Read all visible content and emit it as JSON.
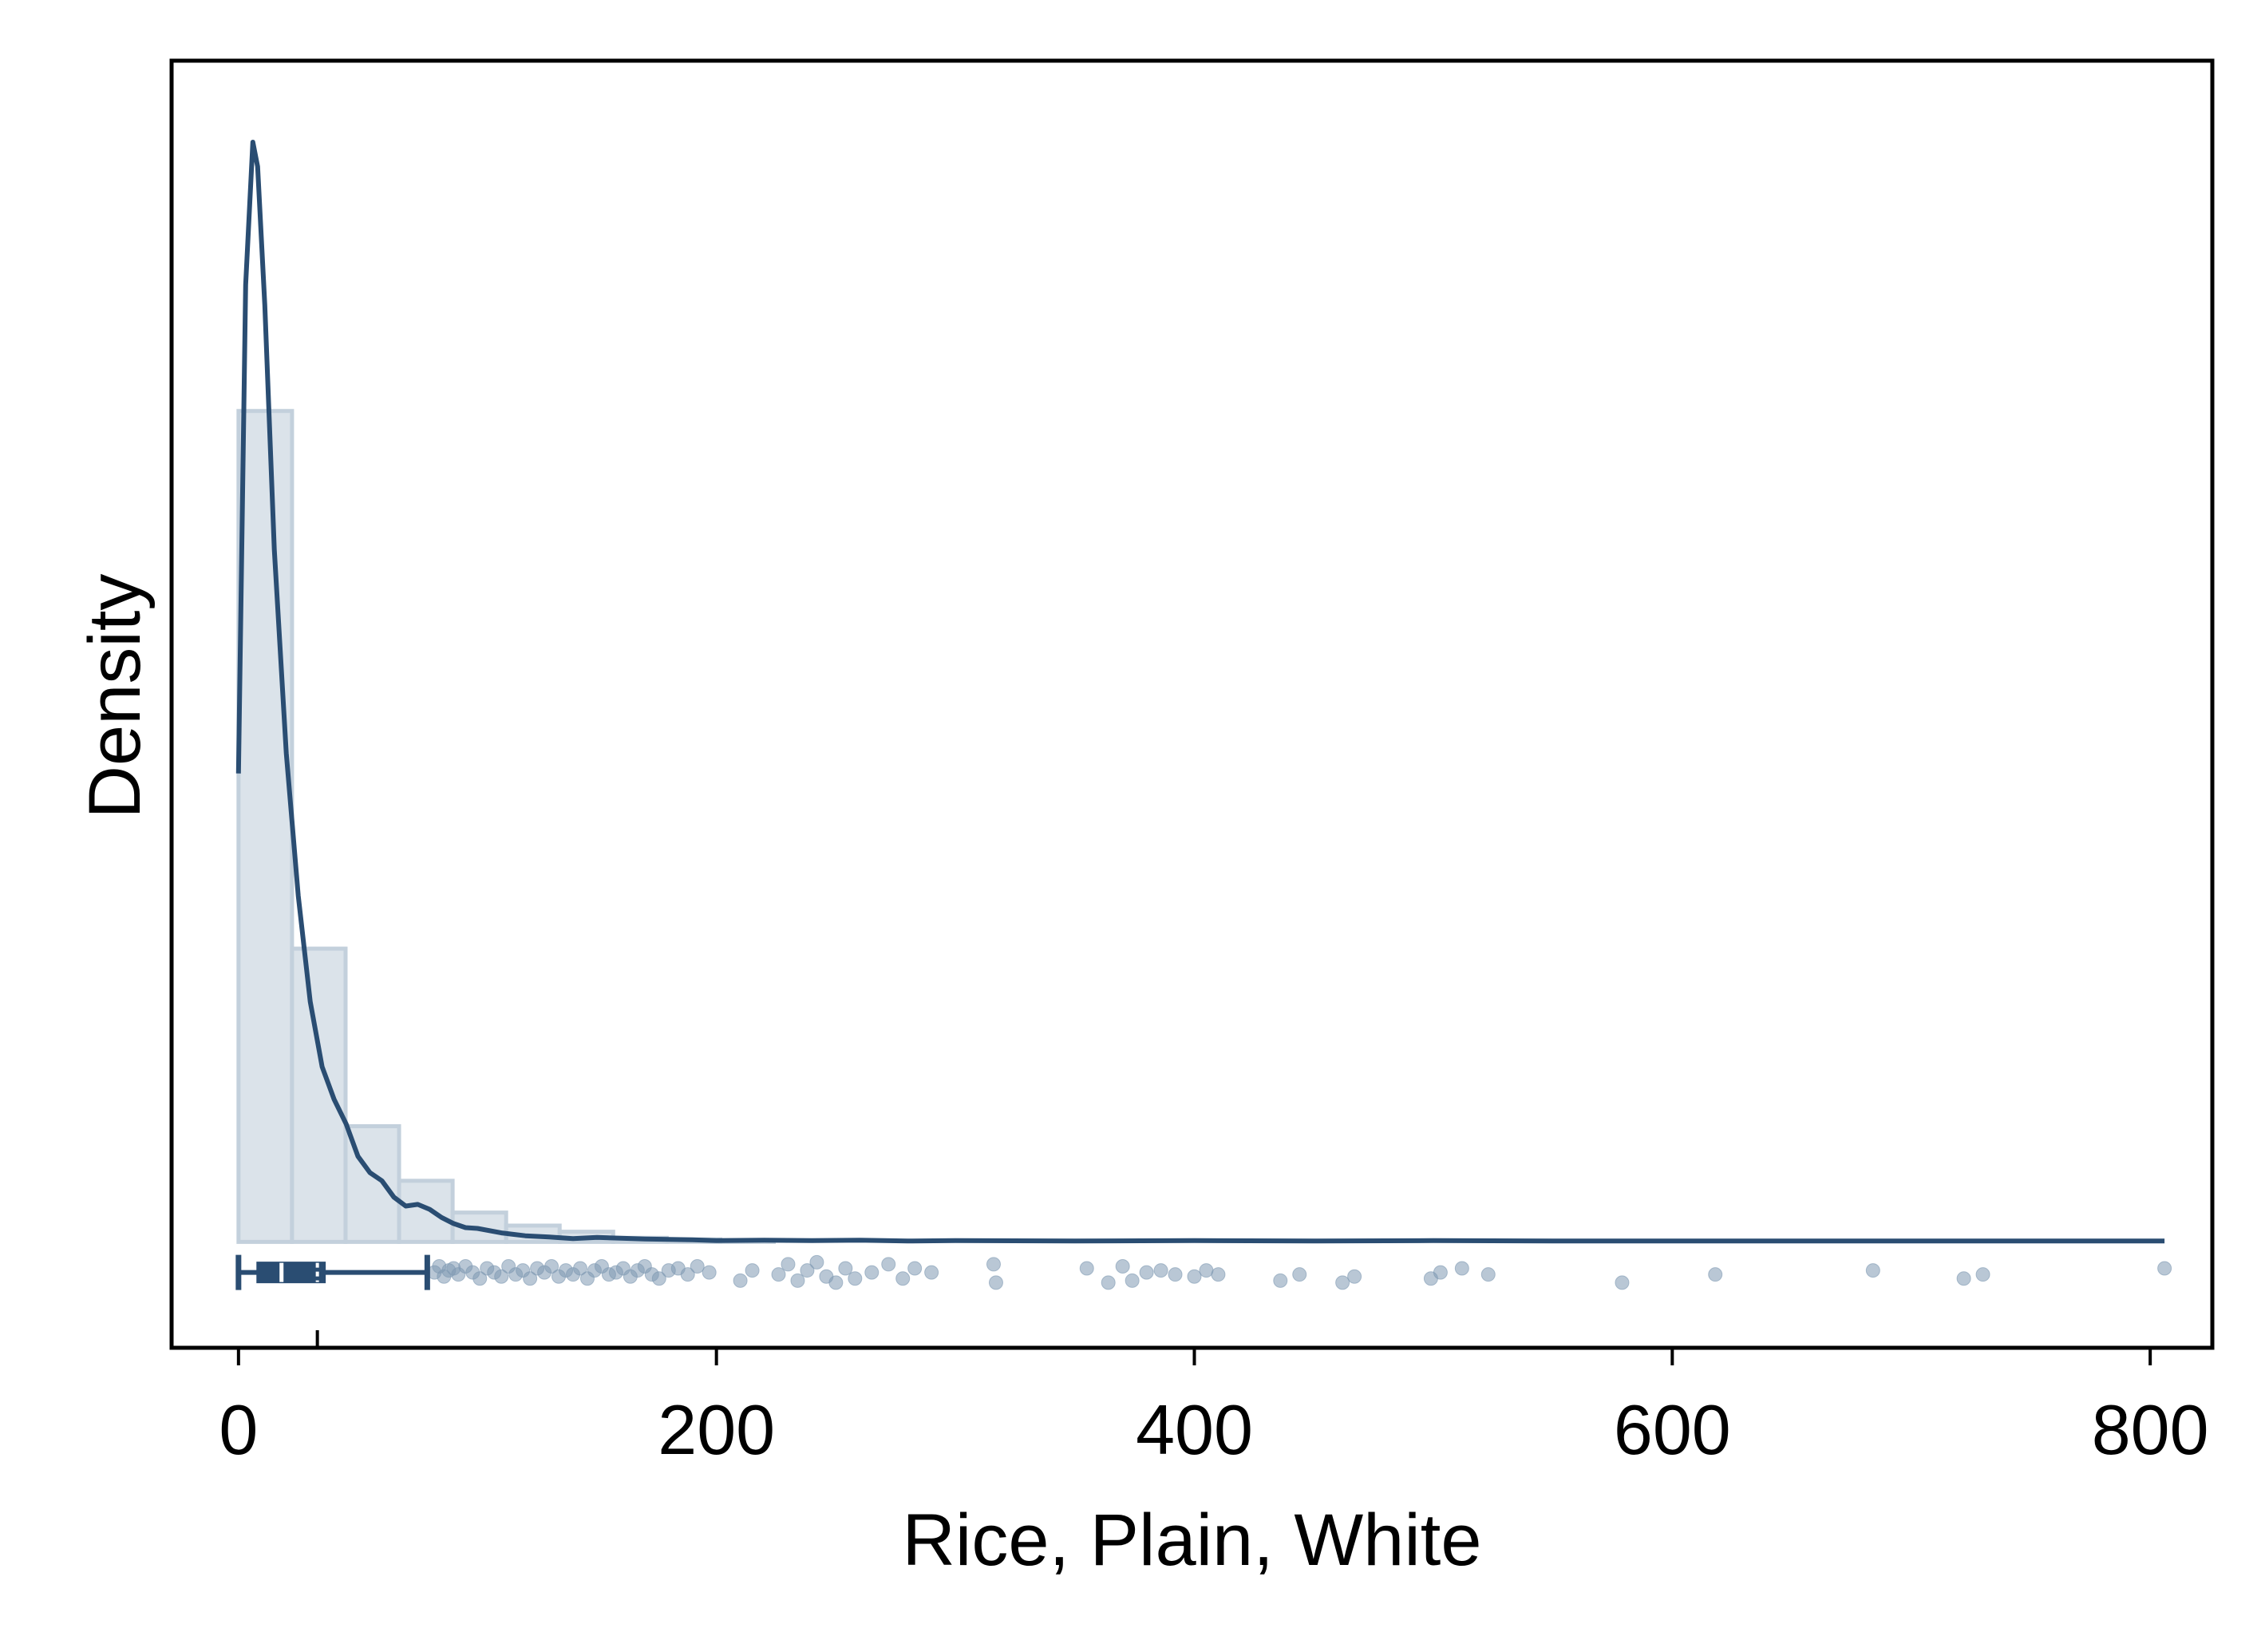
{
  "chart_data": {
    "type": "histogram",
    "xlabel": "Rice, Plain, White",
    "ylabel": "Density",
    "xlim": [
      -28,
      826
    ],
    "ylim": [
      -0.0026,
      0.029
    ],
    "x_ticks": [
      0,
      200,
      400,
      600,
      800
    ],
    "y_ticks_shown": false,
    "grid": false,
    "colors": {
      "bar_fill": "#dbe3ea",
      "bar_stroke": "#c3d0dc",
      "kde_line": "#2a4d72",
      "box": "#2a4d72",
      "points": "#7f99b2"
    },
    "histogram": {
      "bin_width": 22.4,
      "bin_start": 0,
      "densities": [
        0.0204,
        0.0072,
        0.00284,
        0.0015,
        0.00072,
        0.0004,
        0.00025,
        0.0001,
        6e-05,
        4e-05
      ]
    },
    "kde": {
      "x": [
        0,
        3,
        6,
        8,
        11,
        15,
        20,
        25,
        30,
        35,
        40,
        45,
        50,
        55,
        60,
        65,
        70,
        75,
        80,
        85,
        90,
        95,
        100,
        110,
        120,
        130,
        140,
        150,
        160,
        170,
        180,
        190,
        200,
        220,
        240,
        260,
        280,
        300,
        350,
        400,
        450,
        500,
        550,
        600,
        650,
        700,
        750,
        806
      ],
      "y": [
        0.0115,
        0.0235,
        0.027,
        0.0264,
        0.023,
        0.017,
        0.012,
        0.0085,
        0.0059,
        0.0043,
        0.0035,
        0.0029,
        0.0021,
        0.0017,
        0.0015,
        0.0011,
        0.00088,
        0.00092,
        0.0008,
        0.0006,
        0.00045,
        0.00035,
        0.00033,
        0.00022,
        0.00015,
        0.00012,
        8e-05,
        0.00011,
        9e-05,
        7e-05,
        6e-05,
        5e-05,
        3e-05,
        4e-05,
        3e-05,
        4e-05,
        2e-05,
        3e-05,
        2e-05,
        3e-05,
        2e-05,
        3e-05,
        2e-05,
        2e-05,
        2e-05,
        2e-05,
        2e-05,
        2e-05
      ]
    },
    "boxplot": {
      "whisker_low": 0,
      "q1": 8,
      "median": 18,
      "q3": 36,
      "whisker_high": 79,
      "mean": 33
    },
    "outliers": [
      {
        "x": 82,
        "y": -0.00075
      },
      {
        "x": 84,
        "y": -0.0006
      },
      {
        "x": 86,
        "y": -0.00085
      },
      {
        "x": 88,
        "y": -0.0007
      },
      {
        "x": 90,
        "y": -0.00065
      },
      {
        "x": 92,
        "y": -0.0008
      },
      {
        "x": 95,
        "y": -0.0006
      },
      {
        "x": 98,
        "y": -0.00075
      },
      {
        "x": 101,
        "y": -0.0009
      },
      {
        "x": 104,
        "y": -0.00065
      },
      {
        "x": 107,
        "y": -0.00075
      },
      {
        "x": 110,
        "y": -0.00085
      },
      {
        "x": 113,
        "y": -0.0006
      },
      {
        "x": 116,
        "y": -0.0008
      },
      {
        "x": 119,
        "y": -0.0007
      },
      {
        "x": 122,
        "y": -0.0009
      },
      {
        "x": 125,
        "y": -0.00065
      },
      {
        "x": 128,
        "y": -0.00075
      },
      {
        "x": 131,
        "y": -0.0006
      },
      {
        "x": 134,
        "y": -0.00085
      },
      {
        "x": 137,
        "y": -0.0007
      },
      {
        "x": 140,
        "y": -0.0008
      },
      {
        "x": 143,
        "y": -0.00065
      },
      {
        "x": 146,
        "y": -0.0009
      },
      {
        "x": 149,
        "y": -0.0007
      },
      {
        "x": 152,
        "y": -0.0006
      },
      {
        "x": 155,
        "y": -0.0008
      },
      {
        "x": 158,
        "y": -0.00075
      },
      {
        "x": 161,
        "y": -0.00065
      },
      {
        "x": 164,
        "y": -0.00085
      },
      {
        "x": 167,
        "y": -0.0007
      },
      {
        "x": 170,
        "y": -0.0006
      },
      {
        "x": 173,
        "y": -0.0008
      },
      {
        "x": 176,
        "y": -0.0009
      },
      {
        "x": 180,
        "y": -0.0007
      },
      {
        "x": 184,
        "y": -0.00065
      },
      {
        "x": 188,
        "y": -0.0008
      },
      {
        "x": 192,
        "y": -0.0006
      },
      {
        "x": 197,
        "y": -0.00075
      },
      {
        "x": 210,
        "y": -0.00095
      },
      {
        "x": 215,
        "y": -0.0007
      },
      {
        "x": 226,
        "y": -0.0008
      },
      {
        "x": 230,
        "y": -0.00055
      },
      {
        "x": 234,
        "y": -0.00095
      },
      {
        "x": 238,
        "y": -0.0007
      },
      {
        "x": 242,
        "y": -0.0005
      },
      {
        "x": 246,
        "y": -0.00085
      },
      {
        "x": 250,
        "y": -0.001
      },
      {
        "x": 254,
        "y": -0.00065
      },
      {
        "x": 258,
        "y": -0.0009
      },
      {
        "x": 265,
        "y": -0.00075
      },
      {
        "x": 272,
        "y": -0.00055
      },
      {
        "x": 278,
        "y": -0.0009
      },
      {
        "x": 283,
        "y": -0.00065
      },
      {
        "x": 290,
        "y": -0.00075
      },
      {
        "x": 316,
        "y": -0.00055
      },
      {
        "x": 317,
        "y": -0.001
      },
      {
        "x": 355,
        "y": -0.00065
      },
      {
        "x": 364,
        "y": -0.001
      },
      {
        "x": 370,
        "y": -0.0006
      },
      {
        "x": 374,
        "y": -0.00095
      },
      {
        "x": 380,
        "y": -0.00075
      },
      {
        "x": 386,
        "y": -0.0007
      },
      {
        "x": 392,
        "y": -0.0008
      },
      {
        "x": 400,
        "y": -0.00085
      },
      {
        "x": 405,
        "y": -0.0007
      },
      {
        "x": 410,
        "y": -0.0008
      },
      {
        "x": 436,
        "y": -0.00095
      },
      {
        "x": 444,
        "y": -0.0008
      },
      {
        "x": 462,
        "y": -0.001
      },
      {
        "x": 467,
        "y": -0.00085
      },
      {
        "x": 499,
        "y": -0.0009
      },
      {
        "x": 503,
        "y": -0.00075
      },
      {
        "x": 512,
        "y": -0.00065
      },
      {
        "x": 523,
        "y": -0.0008
      },
      {
        "x": 579,
        "y": -0.001
      },
      {
        "x": 618,
        "y": -0.0008
      },
      {
        "x": 684,
        "y": -0.0007
      },
      {
        "x": 722,
        "y": -0.0009
      },
      {
        "x": 730,
        "y": -0.0008
      },
      {
        "x": 806,
        "y": -0.00065
      }
    ]
  }
}
